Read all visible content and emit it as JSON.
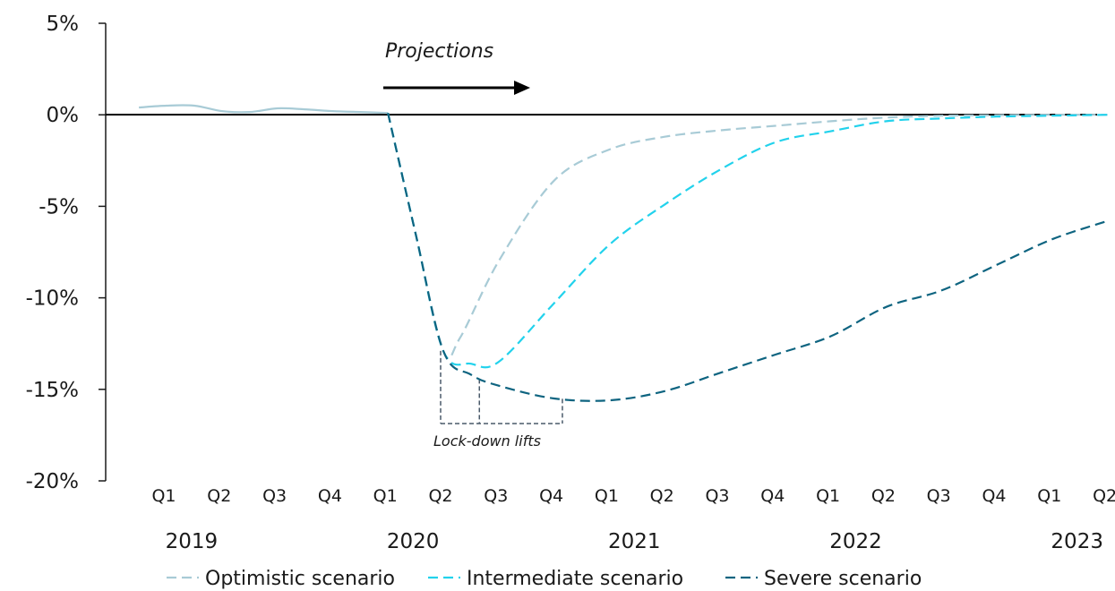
{
  "chart_data": {
    "type": "line",
    "y_ticks": [
      "5%",
      "0%",
      "-5%",
      "-10%",
      "-15%",
      "-20%"
    ],
    "ylim": [
      -20,
      5
    ],
    "x_quarter_labels": [
      "Q1",
      "Q2",
      "Q3",
      "Q4",
      "Q1",
      "Q2",
      "Q3",
      "Q4",
      "Q1",
      "Q2",
      "Q3",
      "Q4",
      "Q1",
      "Q2",
      "Q3",
      "Q4",
      "Q1",
      "Q2"
    ],
    "x_year_labels": [
      {
        "label": "2019",
        "quarter_index": 0.5
      },
      {
        "label": "2020",
        "quarter_index": 4.5
      },
      {
        "label": "2021",
        "quarter_index": 8.5
      },
      {
        "label": "2022",
        "quarter_index": 12.5
      },
      {
        "label": "2023",
        "quarter_index": 16.5
      }
    ],
    "historical": {
      "color": "#a8cbd6",
      "style": "solid",
      "points": [
        [
          -0.5,
          0.4
        ],
        [
          0,
          0.5
        ],
        [
          0.5,
          0.5
        ],
        [
          1,
          0.2
        ],
        [
          1.5,
          0.15
        ],
        [
          2,
          0.35
        ],
        [
          2.5,
          0.3
        ],
        [
          3,
          0.2
        ],
        [
          3.5,
          0.15
        ],
        [
          4,
          0.1
        ]
      ]
    },
    "series": [
      {
        "name": "Optimistic scenario",
        "color": "#a8cbd6",
        "style": "dashed",
        "points": [
          [
            4,
            0.1
          ],
          [
            4.5,
            -6.5
          ],
          [
            5,
            -12.9
          ],
          [
            5.3,
            -12.2
          ],
          [
            6,
            -8
          ],
          [
            7,
            -3.6
          ],
          [
            8,
            -1.9
          ],
          [
            9,
            -1.2
          ],
          [
            10,
            -0.85
          ],
          [
            11,
            -0.6
          ],
          [
            12,
            -0.35
          ],
          [
            13,
            -0.15
          ],
          [
            14,
            -0.05
          ],
          [
            15,
            -0.02
          ],
          [
            16,
            0
          ],
          [
            17,
            0
          ]
        ]
      },
      {
        "name": "Intermediate scenario",
        "color": "#22d2ec",
        "style": "dashed",
        "points": [
          [
            4,
            0.1
          ],
          [
            4.5,
            -6.5
          ],
          [
            5,
            -12.9
          ],
          [
            5.5,
            -13.6
          ],
          [
            6,
            -13.5
          ],
          [
            7,
            -10.3
          ],
          [
            8,
            -7.1
          ],
          [
            9,
            -4.9
          ],
          [
            10,
            -3
          ],
          [
            11,
            -1.5
          ],
          [
            12,
            -0.9
          ],
          [
            13,
            -0.35
          ],
          [
            14,
            -0.2
          ],
          [
            15,
            -0.1
          ],
          [
            16,
            -0.05
          ],
          [
            17,
            0
          ]
        ]
      },
      {
        "name": "Severe scenario",
        "color": "#0e6480",
        "style": "dashed",
        "points": [
          [
            4,
            0.1
          ],
          [
            4.5,
            -6.5
          ],
          [
            5,
            -12.9
          ],
          [
            5.5,
            -14.2
          ],
          [
            6,
            -14.8
          ],
          [
            7,
            -15.5
          ],
          [
            8,
            -15.6
          ],
          [
            9,
            -15.1
          ],
          [
            10,
            -14.1
          ],
          [
            11,
            -13.1
          ],
          [
            12,
            -12.1
          ],
          [
            13,
            -10.5
          ],
          [
            14,
            -9.6
          ],
          [
            15,
            -8.2
          ],
          [
            16,
            -6.8
          ],
          [
            17,
            -5.8
          ]
        ]
      }
    ],
    "annotations": {
      "projections_label": "Projections",
      "lockdown_label": "Lock-down lifts",
      "lockdown_quarters": [
        5,
        5.7,
        7.2
      ]
    },
    "legend_position": "bottom"
  }
}
